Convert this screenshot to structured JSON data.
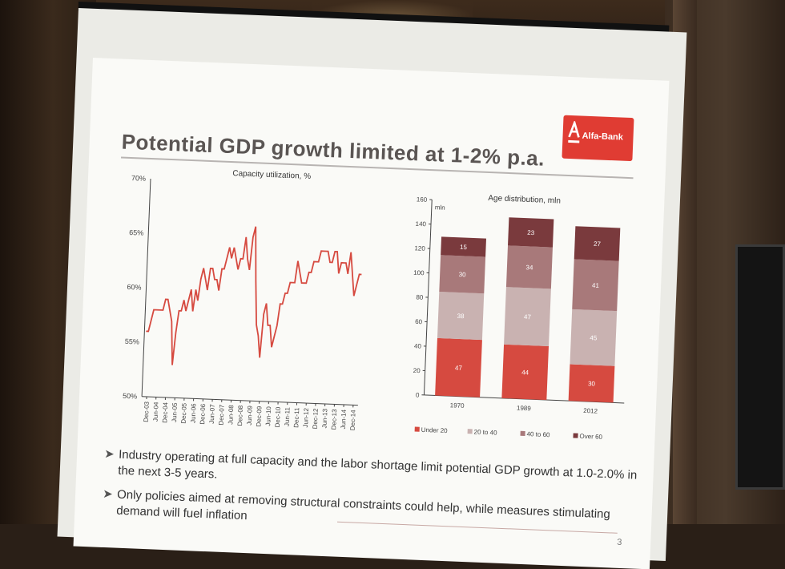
{
  "slide": {
    "title": "Potential GDP growth limited at 1-2% p.a.",
    "logo_text": "Alfa-Bank",
    "page_number": "3",
    "bullets": [
      "Industry operating at full capacity and the labor shortage limit potential GDP growth at 1.0-2.0% in the next 3-5 years.",
      "Only policies aimed at removing structural constraints could help, while measures stimulating demand will fuel inflation"
    ]
  },
  "chart_data": [
    {
      "type": "line",
      "title": "Capacity utilization, %",
      "xlabel": "",
      "ylabel": "",
      "ylim": [
        50,
        70
      ],
      "y_ticks": [
        "50%",
        "55%",
        "60%",
        "65%",
        "70%"
      ],
      "x_ticks": [
        "Dec-03",
        "Jun-04",
        "Dec-04",
        "Jun-05",
        "Dec-05",
        "Jun-06",
        "Dec-06",
        "Jun-07",
        "Dec-07",
        "Jun-08",
        "Dec-08",
        "Jun-09",
        "Dec-09",
        "Jun-10",
        "Dec-10",
        "Jun-11",
        "Dec-11",
        "Jun-12",
        "Dec-12",
        "Jun-13",
        "Dec-13",
        "Jun-14",
        "Dec-14"
      ],
      "color": "#d64a40",
      "series": [
        {
          "values": [
            56,
            56,
            57,
            58,
            58,
            58,
            58,
            58,
            59,
            59,
            58,
            57,
            53,
            56,
            58,
            58,
            59,
            58,
            59,
            60,
            58,
            60,
            59,
            61,
            62,
            61,
            60,
            62,
            62,
            61,
            61,
            60,
            62,
            62,
            63,
            64,
            63,
            64,
            63,
            62,
            63,
            63,
            65,
            63,
            62,
            65,
            66,
            61,
            57,
            56,
            54,
            58,
            59,
            57,
            57,
            55,
            56,
            57,
            59,
            59,
            60,
            60,
            61,
            61,
            61,
            63,
            62,
            61,
            61,
            61,
            62,
            62,
            63,
            63,
            63,
            64,
            64,
            64,
            64,
            63,
            63,
            64,
            64,
            62,
            63,
            63,
            63,
            62,
            64,
            62,
            60,
            61,
            62,
            62
          ],
          "x_range_label": "Dec-03 to Dec-14"
        }
      ],
      "grid": false
    },
    {
      "type": "bar",
      "stacked": true,
      "title": "Age distribution, mln",
      "ylabel": "mln",
      "ylim": [
        0,
        160
      ],
      "y_ticks": [
        "0",
        "20",
        "40",
        "60",
        "80",
        "100",
        "120",
        "140",
        "160"
      ],
      "categories": [
        "1970",
        "1989",
        "2012"
      ],
      "series": [
        {
          "name": "Under 20",
          "values": [
            47,
            44,
            30
          ],
          "color": "#d64a40"
        },
        {
          "name": "20 to 40",
          "values": [
            38,
            47,
            45
          ],
          "color": "#c9b2b1"
        },
        {
          "name": "40 to 60",
          "values": [
            30,
            34,
            41
          ],
          "color": "#a8797a"
        },
        {
          "name": "Over 60",
          "values": [
            15,
            23,
            27
          ],
          "color": "#7a3a3d"
        }
      ],
      "legend": "bottom"
    }
  ]
}
